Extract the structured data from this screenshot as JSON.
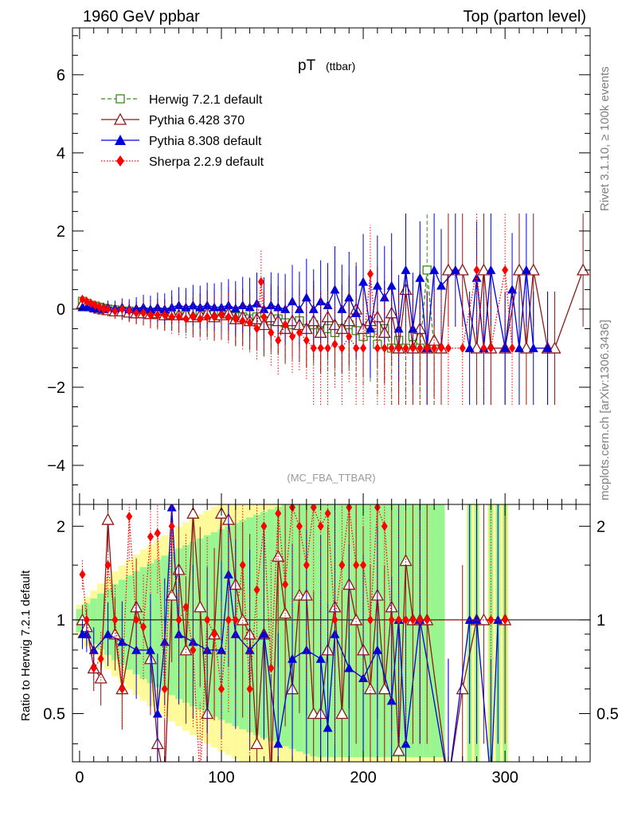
{
  "header": {
    "left": "1960 GeV ppbar",
    "right": "Top (parton level)"
  },
  "side": {
    "right_top": "Rivet 3.1.10, ≥ 100k events",
    "right_bottom": "mcplots.cern.ch [arXiv:1306.3436]"
  },
  "colors": {
    "herwig": "#3a8c1c",
    "pythia6": "#8b1a1a",
    "pythia8": "#0000dd",
    "sherpa": "#ff0000",
    "band_inner": "#99f58f",
    "band_outer": "#fffa99",
    "reference_line": "#000000",
    "analysis_label": "#999999",
    "side_text": "#808080"
  },
  "chart_data": [
    {
      "type": "line",
      "panel": "main",
      "title": "pT",
      "title_sub": "(ttbar)",
      "analysis": "(MC_FBA_TTBAR)",
      "xlabel": "",
      "ylabel": "",
      "xlim": [
        -5,
        360
      ],
      "ylim": [
        -5,
        7.2
      ],
      "yticks": [
        -4,
        -2,
        0,
        2,
        4,
        6
      ],
      "ytick_labels": [
        "−4",
        "−2",
        "0",
        "2",
        "4",
        "6"
      ],
      "legend": [
        "Herwig 7.2.1 default",
        "Pythia 6.428 370",
        "Pythia 8.308 default",
        "Sherpa 2.2.9 default"
      ],
      "series": [
        {
          "name": "Herwig 7.2.1 default",
          "marker": "open-square",
          "dash": "dashed",
          "x": [
            2,
            5,
            8,
            11,
            14,
            17,
            20,
            25,
            30,
            35,
            40,
            45,
            50,
            55,
            60,
            65,
            70,
            75,
            80,
            85,
            90,
            95,
            100,
            105,
            110,
            115,
            120,
            125,
            130,
            135,
            140,
            145,
            150,
            155,
            160,
            165,
            170,
            175,
            180,
            185,
            190,
            195,
            200,
            205,
            210,
            215,
            220,
            225,
            230,
            235,
            240,
            245,
            250
          ],
          "y": [
            0.2,
            0.15,
            0.1,
            0.08,
            0.05,
            0.02,
            0,
            -0.02,
            -0.05,
            -0.05,
            -0.08,
            -0.1,
            -0.1,
            -0.12,
            -0.1,
            -0.1,
            -0.08,
            -0.1,
            -0.1,
            -0.12,
            -0.15,
            -0.12,
            -0.1,
            -0.15,
            -0.2,
            -0.2,
            -0.25,
            -0.2,
            -0.3,
            -0.3,
            -0.25,
            -0.35,
            -0.4,
            -0.3,
            -0.5,
            -0.4,
            -0.55,
            -0.5,
            -0.6,
            -0.5,
            -0.4,
            -0.55,
            -0.7,
            -0.6,
            -0.9,
            -0.5,
            -1,
            -0.8,
            -1,
            -0.7,
            -1,
            1,
            -1
          ]
        },
        {
          "name": "Pythia 6.428 370",
          "marker": "open-triangle",
          "dash": "solid",
          "x": [
            2,
            5,
            8,
            11,
            14,
            17,
            20,
            25,
            30,
            35,
            40,
            45,
            50,
            55,
            60,
            65,
            70,
            75,
            80,
            85,
            90,
            95,
            100,
            105,
            110,
            115,
            120,
            125,
            130,
            135,
            140,
            145,
            150,
            155,
            160,
            165,
            170,
            175,
            180,
            185,
            190,
            195,
            200,
            205,
            210,
            215,
            220,
            225,
            230,
            235,
            240,
            245,
            250,
            255,
            260,
            270,
            280,
            285,
            290,
            300,
            310,
            315,
            320,
            330,
            335,
            355
          ],
          "y": [
            0.15,
            0.1,
            0.08,
            0.05,
            0.02,
            0,
            -0.02,
            -0.05,
            -0.05,
            -0.08,
            -0.1,
            -0.1,
            -0.12,
            -0.1,
            -0.15,
            -0.12,
            -0.15,
            -0.12,
            -0.2,
            -0.15,
            -0.1,
            -0.2,
            -0.15,
            -0.1,
            -0.25,
            -0.2,
            -0.3,
            -0.25,
            -0.4,
            -0.2,
            -0.3,
            -0.5,
            -0.3,
            -0.4,
            -0.5,
            -0.3,
            -0.6,
            -0.2,
            -0.4,
            -0.5,
            -0.3,
            0,
            -0.5,
            -0.3,
            -0.2,
            -0.6,
            -0.1,
            -1,
            0.5,
            -1,
            -0.5,
            -1,
            -0.8,
            -1,
            1,
            1,
            -1,
            1,
            -1,
            -1,
            1,
            -1,
            1,
            -1,
            -1,
            1
          ]
        },
        {
          "name": "Pythia 8.308 default",
          "marker": "filled-triangle",
          "dash": "solid",
          "x": [
            2,
            5,
            8,
            11,
            14,
            17,
            20,
            25,
            30,
            35,
            40,
            45,
            50,
            55,
            60,
            65,
            70,
            75,
            80,
            85,
            90,
            95,
            100,
            105,
            110,
            115,
            120,
            125,
            130,
            135,
            140,
            145,
            150,
            155,
            160,
            165,
            170,
            175,
            180,
            185,
            190,
            195,
            200,
            205,
            210,
            215,
            220,
            225,
            230,
            235,
            240,
            245,
            250,
            255,
            265,
            275,
            280,
            285,
            290,
            300,
            305,
            310,
            315,
            320,
            330
          ],
          "y": [
            0.05,
            0.05,
            0.05,
            0.02,
            0.02,
            0,
            0.05,
            0.02,
            0.05,
            0,
            0.02,
            0.05,
            0,
            0.05,
            0,
            0.05,
            0.1,
            0.05,
            0.1,
            0.05,
            0.1,
            0.05,
            0.05,
            0.1,
            0.02,
            0.1,
            0.05,
            0.15,
            0,
            0.1,
            0.05,
            0,
            0.2,
            0,
            0.3,
            0,
            0.2,
            0.1,
            0.5,
            0,
            0.3,
            -0.1,
            0.7,
            -0.5,
            0.6,
            0.3,
            0.6,
            -0.5,
            1,
            -0.5,
            0.8,
            -1,
            1,
            0.6,
            1,
            -1,
            0.8,
            -1,
            1,
            -1,
            0.5,
            -1,
            1,
            -1,
            -1
          ]
        },
        {
          "name": "Sherpa 2.2.9 default",
          "marker": "filled-diamond",
          "dash": "dotted",
          "x": [
            2,
            5,
            8,
            11,
            14,
            17,
            20,
            25,
            30,
            35,
            40,
            45,
            50,
            55,
            60,
            65,
            70,
            75,
            80,
            85,
            90,
            95,
            100,
            105,
            110,
            115,
            120,
            125,
            128,
            130,
            135,
            140,
            145,
            150,
            155,
            160,
            165,
            170,
            175,
            180,
            185,
            190,
            195,
            200,
            205,
            210,
            215,
            220,
            225,
            230,
            235,
            240,
            245,
            250,
            255,
            260,
            270,
            280,
            285,
            290,
            300,
            305
          ],
          "y": [
            0.25,
            0.2,
            0.15,
            0.1,
            0.05,
            0,
            0,
            -0.05,
            0,
            -0.05,
            -0.1,
            -0.1,
            -0.15,
            -0.15,
            -0.15,
            -0.2,
            -0.2,
            -0.25,
            -0.2,
            -0.25,
            -0.2,
            -0.2,
            -0.15,
            -0.2,
            -0.25,
            -0.3,
            -0.35,
            -0.5,
            0.7,
            -0.2,
            -0.6,
            -0.8,
            -0.4,
            -0.7,
            -0.6,
            -0.8,
            -1,
            -1,
            -1,
            -0.9,
            -1,
            -0.7,
            -1,
            -1,
            0.9,
            -1,
            -1,
            -1,
            -1,
            -1,
            -1,
            -1,
            -1,
            -1,
            -1,
            -1,
            -1,
            1,
            -1,
            -1,
            1,
            -1
          ]
        }
      ]
    },
    {
      "type": "line",
      "panel": "ratio",
      "ylabel": "Ratio to Herwig 7.2.1 default",
      "xlim": [
        -5,
        360
      ],
      "ylim": [
        0.35,
        2.35
      ],
      "xticks": [
        0,
        100,
        200,
        300
      ],
      "xtick_labels": [
        "0",
        "100",
        "200",
        "300"
      ],
      "yticks": [
        0.5,
        1,
        2
      ],
      "ytick_labels": [
        "0.5",
        "1",
        "2"
      ],
      "series": [
        {
          "name": "Pythia 6.428 370",
          "x": [
            2,
            5,
            10,
            15,
            20,
            25,
            30,
            40,
            50,
            55,
            60,
            65,
            70,
            75,
            80,
            85,
            90,
            95,
            100,
            105,
            110,
            115,
            120,
            125,
            130,
            135,
            140,
            145,
            150,
            155,
            160,
            165,
            170,
            175,
            180,
            185,
            190,
            195,
            200,
            205,
            210,
            215,
            220,
            225,
            230,
            235,
            240,
            245,
            260,
            270,
            280,
            285,
            300
          ],
          "y": [
            1.0,
            0.95,
            0.7,
            0.65,
            2.1,
            0.9,
            0.6,
            1.1,
            0.75,
            0.4,
            0.3,
            1.2,
            1.45,
            0.8,
            2.2,
            1.1,
            0.5,
            0.9,
            2.2,
            2.1,
            1.3,
            1.0,
            0.9,
            0.4,
            0.9,
            0.3,
            1.6,
            1.05,
            0.6,
            1.2,
            1.2,
            0.5,
            0.5,
            0.8,
            1.1,
            0.5,
            1.3,
            1.0,
            0.8,
            0.6,
            1.2,
            0.6,
            1.1,
            0.38,
            1.55,
            1.0,
            1.0,
            1.0,
            0.3,
            0.6,
            1.0,
            1.0,
            1.0
          ]
        },
        {
          "name": "Pythia 8.308 default",
          "x": [
            2,
            5,
            10,
            20,
            30,
            40,
            50,
            55,
            60,
            65,
            70,
            80,
            90,
            100,
            105,
            110,
            120,
            130,
            140,
            150,
            160,
            170,
            175,
            180,
            190,
            200,
            210,
            220,
            225,
            230,
            240,
            260,
            275,
            280,
            290,
            295
          ],
          "y": [
            0.9,
            0.9,
            0.8,
            0.9,
            0.85,
            0.8,
            0.8,
            0.5,
            0.85,
            2.3,
            0.9,
            0.85,
            0.8,
            0.8,
            1.4,
            0.9,
            0.8,
            0.9,
            0.4,
            0.75,
            0.8,
            0.75,
            0.45,
            0.9,
            0.7,
            0.65,
            0.8,
            0.55,
            1.0,
            0.4,
            1.0,
            0.3,
            1.0,
            1.0,
            0.3,
            1.0
          ]
        },
        {
          "name": "Sherpa 2.2.9 default",
          "x": [
            2,
            5,
            10,
            15,
            20,
            25,
            30,
            35,
            40,
            45,
            50,
            55,
            60,
            65,
            70,
            75,
            80,
            85,
            90,
            95,
            100,
            105,
            110,
            115,
            120,
            125,
            130,
            135,
            140,
            145,
            150,
            155,
            160,
            165,
            170,
            175,
            180,
            185,
            190,
            195,
            200,
            205,
            210,
            215,
            220,
            225,
            230,
            235,
            240,
            245,
            290,
            300
          ],
          "y": [
            1.4,
            1.0,
            0.7,
            0.75,
            1.5,
            1.0,
            0.6,
            2.15,
            1.0,
            0.95,
            1.85,
            1.9,
            0.6,
            2.0,
            1.0,
            1.1,
            0.8,
            0.3,
            1.0,
            0.9,
            0.6,
            1.0,
            1.0,
            1.5,
            0.6,
            1.25,
            2.0,
            0.7,
            2.2,
            1.3,
            2.3,
            2.0,
            1.5,
            2.3,
            2.0,
            2.2,
            1.0,
            1.5,
            2.3,
            1.5,
            1.5,
            1.0,
            2.3,
            2.0,
            1.0,
            1.0,
            1.0,
            1.0,
            1.0,
            1.0,
            1.0,
            1.0
          ]
        }
      ]
    }
  ]
}
